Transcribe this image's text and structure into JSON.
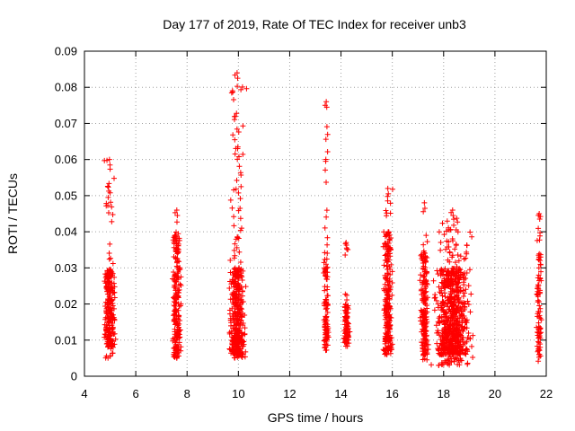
{
  "chart_data": {
    "type": "scatter",
    "title": "Day 177 of 2019, Rate Of TEC Index for receiver unb3",
    "xlabel": "GPS time / hours",
    "ylabel": "ROTI / TECUs",
    "xlim": [
      4,
      22
    ],
    "ylim": [
      0,
      0.09
    ],
    "x_ticks": [
      4,
      6,
      8,
      10,
      12,
      14,
      16,
      18,
      20,
      22
    ],
    "y_ticks": [
      0,
      0.01,
      0.02,
      0.03,
      0.04,
      0.05,
      0.06,
      0.07,
      0.08,
      0.09
    ],
    "x_tick_labels": [
      "4",
      "6",
      "8",
      "10",
      "12",
      "14",
      "16",
      "18",
      "20",
      "22"
    ],
    "y_tick_labels": [
      "0",
      "0.01",
      "0.02",
      "0.03",
      "0.04",
      "0.05",
      "0.06",
      "0.07",
      "0.08",
      "0.09"
    ],
    "grid": true,
    "marker": "+",
    "color": "#ff0000",
    "clusters": [
      {
        "x_range": [
          4.7,
          5.25
        ],
        "y_range": [
          0.005,
          0.06
        ],
        "count": 260,
        "peak": 0.06,
        "core": [
          0.008,
          0.03
        ]
      },
      {
        "x_range": [
          7.4,
          7.8
        ],
        "y_range": [
          0.005,
          0.046
        ],
        "count": 230,
        "peak": 0.046,
        "core": [
          0.007,
          0.04
        ]
      },
      {
        "x_range": [
          9.55,
          10.35
        ],
        "y_range": [
          0.005,
          0.084
        ],
        "count": 420,
        "peak": 0.084,
        "core": [
          0.006,
          0.03
        ]
      },
      {
        "x_range": [
          13.3,
          13.55
        ],
        "y_range": [
          0.007,
          0.076
        ],
        "count": 110,
        "peak": 0.076,
        "core": [
          0.008,
          0.035
        ]
      },
      {
        "x_range": [
          14.05,
          14.35
        ],
        "y_range": [
          0.008,
          0.037
        ],
        "count": 90,
        "peak": 0.037,
        "core": [
          0.009,
          0.02
        ]
      },
      {
        "x_range": [
          15.6,
          16.05
        ],
        "y_range": [
          0.006,
          0.052
        ],
        "count": 250,
        "peak": 0.052,
        "core": [
          0.007,
          0.04
        ]
      },
      {
        "x_range": [
          17.05,
          17.45
        ],
        "y_range": [
          0.003,
          0.048
        ],
        "count": 180,
        "peak": 0.048,
        "core": [
          0.006,
          0.035
        ]
      },
      {
        "x_range": [
          17.45,
          19.25
        ],
        "y_range": [
          0.003,
          0.046
        ],
        "count": 720,
        "peak": 0.046,
        "core": [
          0.006,
          0.03
        ]
      },
      {
        "x_range": [
          21.6,
          21.85
        ],
        "y_range": [
          0.003,
          0.045
        ],
        "count": 90,
        "peak": 0.045,
        "core": [
          0.005,
          0.034
        ]
      }
    ]
  }
}
